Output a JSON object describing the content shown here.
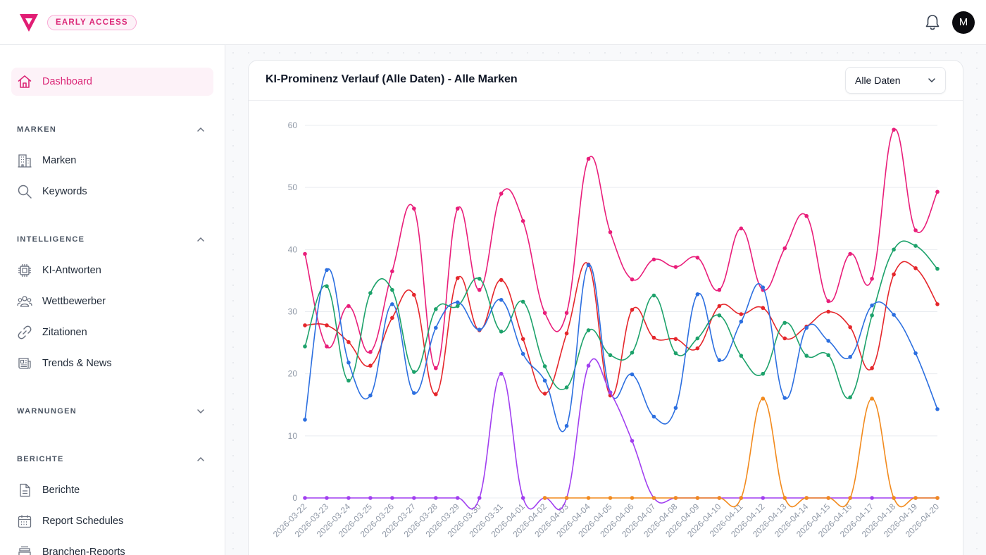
{
  "header": {
    "badge": "EARLY ACCESS",
    "avatar_initial": "M",
    "brand_color": "#e11d74"
  },
  "sidebar": {
    "dashboard": {
      "label": "Dashboard",
      "icon": "home-icon"
    },
    "sections": [
      {
        "title": "MARKEN",
        "expanded": true,
        "items": [
          {
            "label": "Marken",
            "icon": "building-icon"
          },
          {
            "label": "Keywords",
            "icon": "search-icon"
          }
        ]
      },
      {
        "title": "INTELLIGENCE",
        "expanded": true,
        "items": [
          {
            "label": "KI-Antworten",
            "icon": "chip-icon"
          },
          {
            "label": "Wettbewerber",
            "icon": "users-icon"
          },
          {
            "label": "Zitationen",
            "icon": "link-icon"
          },
          {
            "label": "Trends & News",
            "icon": "newspaper-icon"
          }
        ]
      },
      {
        "title": "WARNUNGEN",
        "expanded": false,
        "items": []
      },
      {
        "title": "BERICHTE",
        "expanded": true,
        "items": [
          {
            "label": "Berichte",
            "icon": "document-icon"
          },
          {
            "label": "Report Schedules",
            "icon": "calendar-icon"
          },
          {
            "label": "Branchen-Reports",
            "icon": "stack-icon"
          }
        ]
      }
    ]
  },
  "card": {
    "title": "KI-Prominenz Verlauf (Alle Daten) - Alle Marken",
    "filter": {
      "selected": "Alle Daten"
    }
  },
  "chart_data": {
    "type": "line",
    "ylim": [
      0,
      60
    ],
    "yticks": [
      0,
      10,
      20,
      30,
      40,
      50,
      60
    ],
    "grid": true,
    "x": [
      "2026-03-22",
      "2026-03-23",
      "2026-03-24",
      "2026-03-25",
      "2026-03-26",
      "2026-03-27",
      "2026-03-28",
      "2026-03-29",
      "2026-03-30",
      "2026-03-31",
      "2026-04-01",
      "2026-04-02",
      "2026-04-03",
      "2026-04-04",
      "2026-04-05",
      "2026-04-06",
      "2026-04-07",
      "2026-04-08",
      "2026-04-09",
      "2026-04-10",
      "2026-04-11",
      "2026-04-12",
      "2026-04-13",
      "2026-04-14",
      "2026-04-15",
      "2026-04-16",
      "2026-04-17",
      "2026-04-18",
      "2026-04-19",
      "2026-04-20"
    ],
    "series": [
      {
        "color": "#e91e7a",
        "values": [
          39.3,
          24.4,
          30.9,
          23.5,
          36.5,
          46.6,
          20.9,
          46.6,
          33.5,
          49.0,
          44.6,
          29.8,
          29.8,
          54.6,
          42.8,
          35.2,
          38.4,
          37.2,
          38.7,
          33.5,
          43.4,
          33.5,
          40.2,
          45.4,
          31.7,
          39.3,
          35.3,
          59.3,
          43.1,
          49.3
        ]
      },
      {
        "color": "#e5262b",
        "values": [
          27.8,
          27.8,
          25.1,
          21.3,
          29.0,
          32.7,
          16.7,
          35.4,
          27.0,
          35.1,
          25.6,
          16.8,
          26.5,
          37.6,
          16.5,
          30.3,
          25.8,
          25.6,
          24.1,
          30.9,
          29.6,
          30.6,
          25.7,
          27.6,
          30.0,
          27.5,
          20.9,
          36.0,
          37.0,
          31.2
        ]
      },
      {
        "color": "#1da26b",
        "values": [
          24.4,
          34.1,
          18.9,
          33.0,
          33.5,
          20.3,
          30.4,
          30.9,
          35.3,
          26.8,
          31.6,
          21.2,
          17.8,
          27.0,
          23.0,
          23.4,
          32.6,
          23.3,
          25.7,
          29.4,
          22.9,
          20.0,
          28.2,
          22.9,
          23.0,
          16.2,
          29.4,
          40.0,
          40.6,
          36.9
        ]
      },
      {
        "color": "#2c6fe0",
        "values": [
          12.6,
          36.7,
          21.8,
          16.5,
          31.2,
          16.9,
          27.4,
          31.5,
          27.1,
          31.9,
          23.2,
          18.9,
          11.6,
          37.5,
          17.0,
          19.9,
          13.1,
          14.5,
          32.8,
          22.2,
          28.4,
          33.9,
          16.1,
          27.4,
          25.3,
          22.7,
          31.0,
          29.5,
          23.3,
          14.3
        ]
      },
      {
        "color": "#a13ff0",
        "values": [
          0,
          0,
          0,
          0,
          0,
          0,
          0,
          0,
          0,
          20.0,
          0,
          0,
          0,
          21.3,
          17.0,
          9.2,
          0,
          0,
          0,
          0,
          0,
          0,
          0,
          0,
          0,
          0,
          0,
          0,
          0,
          0
        ]
      },
      {
        "color": "#f28a1d",
        "values": [
          null,
          null,
          null,
          null,
          null,
          null,
          null,
          null,
          null,
          null,
          null,
          0,
          0,
          0,
          0,
          0,
          0,
          0,
          0,
          0,
          0,
          16.0,
          0,
          0,
          0,
          0,
          16.0,
          0,
          0,
          0
        ]
      }
    ]
  }
}
